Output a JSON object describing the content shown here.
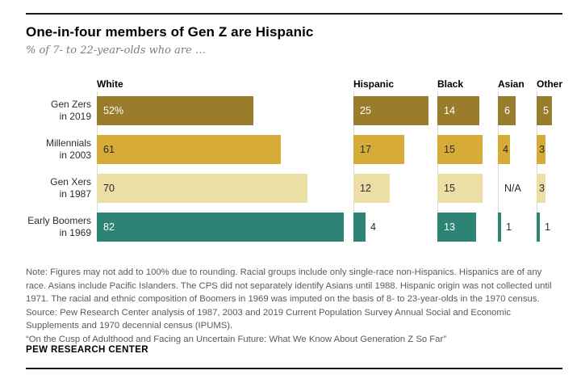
{
  "header": {
    "title": "One-in-four members of Gen Z are Hispanic",
    "subtitle": "% of 7- to 22-year-olds who are …"
  },
  "chart_data": {
    "type": "bar",
    "orientation": "horizontal",
    "unit": "%",
    "groups": [
      "White",
      "Hispanic",
      "Black",
      "Asian",
      "Other"
    ],
    "rows": [
      {
        "label_line1": "Gen Zers",
        "label_line2": "in 2019",
        "color": "#9a7c2d",
        "text_color": "#ffffff",
        "values": [
          52,
          25,
          14,
          6,
          5
        ],
        "value_labels": [
          "52%",
          "25",
          "14",
          "6",
          "5"
        ]
      },
      {
        "label_line1": "Millennials",
        "label_line2": "in 2003",
        "color": "#d7ab37",
        "text_color": "#2b2b2b",
        "values": [
          61,
          17,
          15,
          4,
          3
        ],
        "value_labels": [
          "61",
          "17",
          "15",
          "4",
          "3"
        ]
      },
      {
        "label_line1": "Gen Xers",
        "label_line2": "in 1987",
        "color": "#ebdfa6",
        "text_color": "#2b2b2b",
        "values": [
          70,
          12,
          15,
          null,
          3
        ],
        "value_labels": [
          "70",
          "12",
          "15",
          "N/A",
          "3"
        ]
      },
      {
        "label_line1": "Early Boomers",
        "label_line2": "in 1969",
        "color": "#2d8374",
        "text_color": "#ffffff",
        "values": [
          82,
          4,
          13,
          1,
          1
        ],
        "value_labels": [
          "82",
          "4",
          "13",
          "1",
          "1"
        ]
      }
    ],
    "xlim": [
      0,
      85
    ],
    "grid": false,
    "legend": "none"
  },
  "notes": {
    "note": "Note: Figures may not add to 100% due to rounding. Racial groups include only single-race non-Hispanics. Hispanics are of any race. Asians include Pacific Islanders. The CPS did not separately identify Asians until 1988. Hispanic origin was not collected until 1971. The racial and ethnic composition of Boomers in 1969 was imputed on the basis of 8- to 23-year-olds in the 1970 census.",
    "source": "Source: Pew Research Center analysis of 1987, 2003 and 2019 Current Population Survey Annual Social and Economic Supplements and 1970 decennial census (IPUMS).",
    "quote": "“On the Cusp of Adulthood and Facing an Uncertain Future: What We Know About Generation Z So Far”"
  },
  "footer": {
    "brand": "PEW RESEARCH CENTER"
  }
}
